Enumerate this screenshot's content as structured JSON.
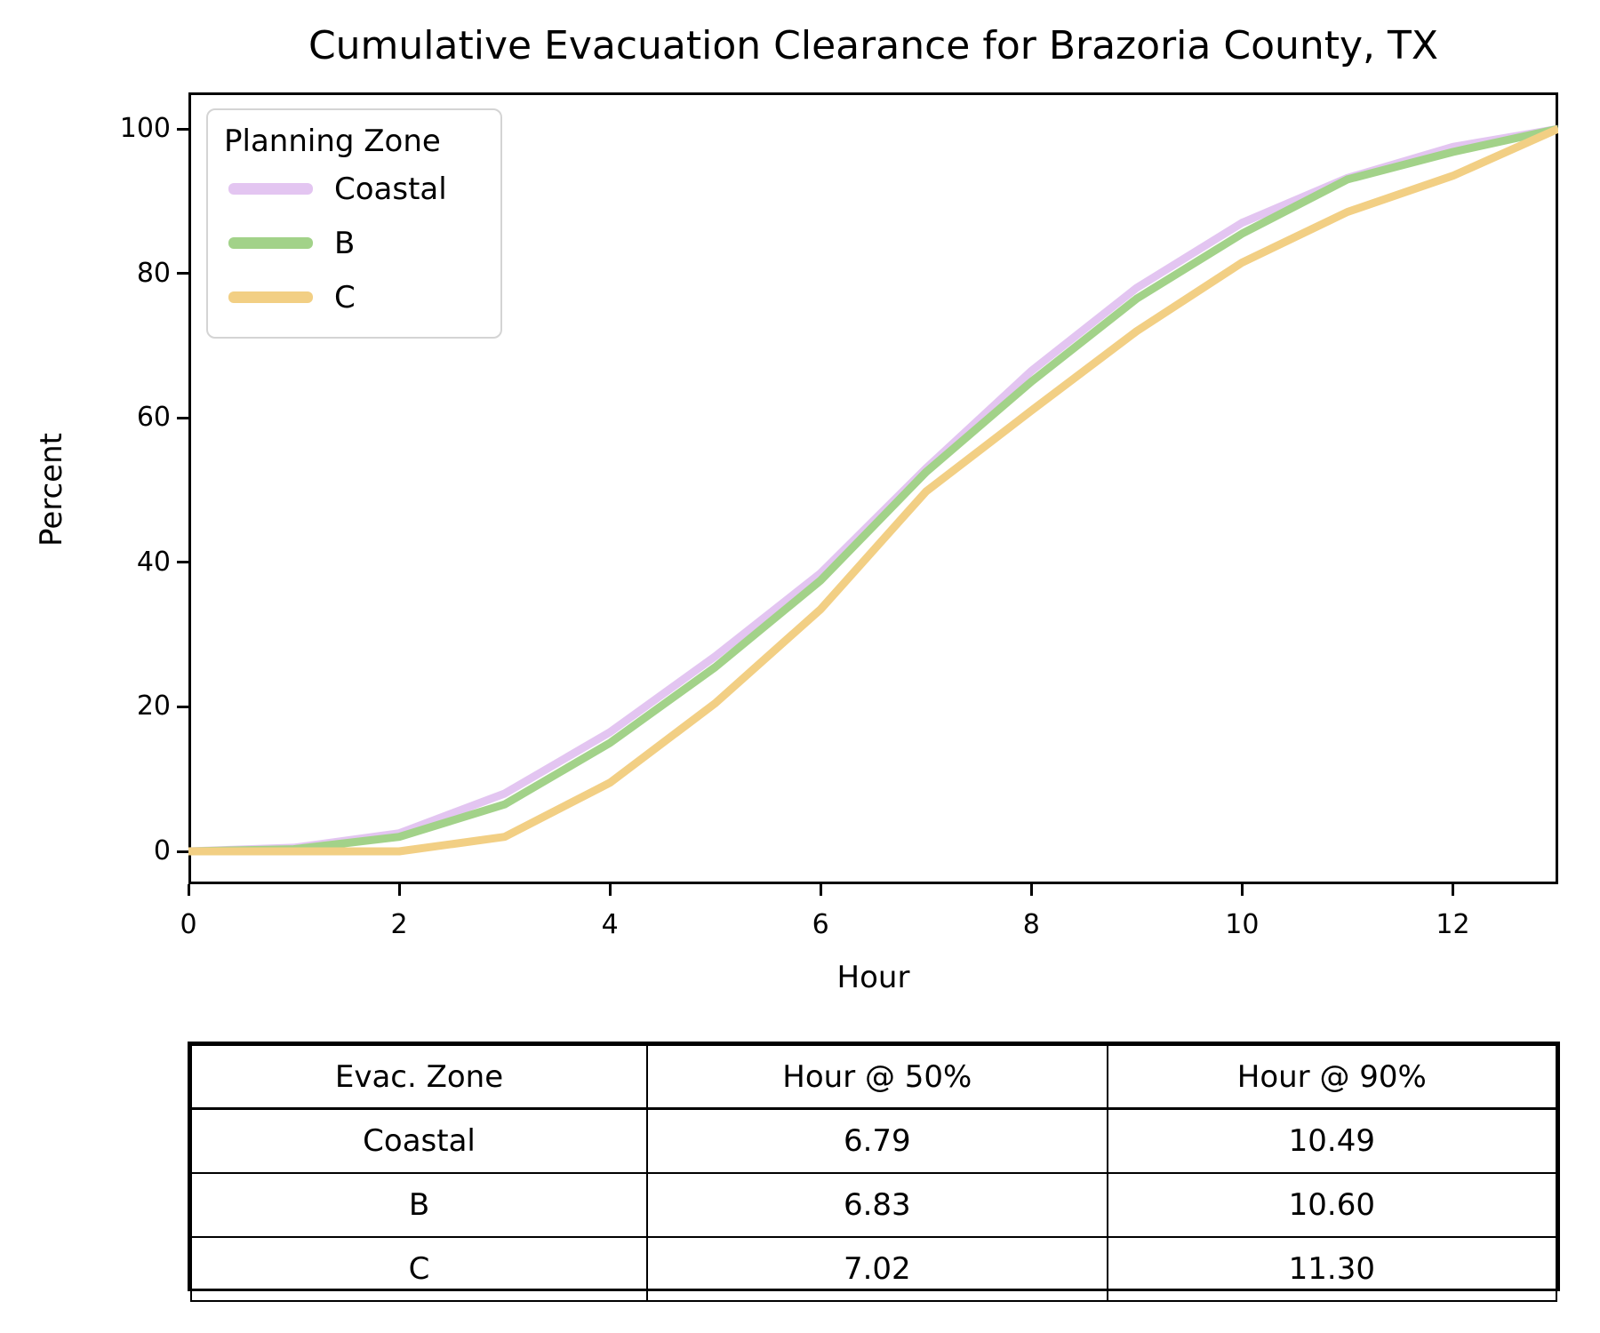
{
  "title": "Cumulative Evacuation Clearance for Brazoria County, TX",
  "chart_data": {
    "type": "line",
    "title": "Cumulative Evacuation Clearance for Brazoria County, TX",
    "xlabel": "Hour",
    "ylabel": "Percent",
    "xlim": [
      0,
      13
    ],
    "ylim": [
      -4.5,
      105
    ],
    "xticks": [
      0,
      2,
      4,
      6,
      8,
      10,
      12
    ],
    "yticks": [
      0,
      20,
      40,
      60,
      80,
      100
    ],
    "grid": false,
    "legend_title": "Planning Zone",
    "legend_position": "upper left",
    "x": [
      0,
      1,
      2,
      3,
      4,
      5,
      6,
      7,
      8,
      9,
      10,
      11,
      12,
      13
    ],
    "series": [
      {
        "name": "Coastal",
        "color": "#e3c5f1",
        "values": [
          0,
          0.5,
          2.5,
          8,
          16.5,
          27,
          38.5,
          53,
          66.5,
          78,
          87,
          93.2,
          97.5,
          100
        ]
      },
      {
        "name": "B",
        "color": "#a2d289",
        "values": [
          0,
          0.3,
          2,
          6.5,
          15,
          25.5,
          37.5,
          52.5,
          65,
          76.5,
          85.5,
          93,
          96.8,
          100
        ]
      },
      {
        "name": "C",
        "color": "#f2cf84",
        "values": [
          0,
          0,
          0,
          2,
          9.5,
          20.5,
          33.5,
          49.8,
          61,
          72,
          81.5,
          88.5,
          93.5,
          100
        ]
      }
    ]
  },
  "table": {
    "headers": [
      "Evac. Zone",
      "Hour @ 50%",
      "Hour @ 90%"
    ],
    "rows": [
      [
        "Coastal",
        "6.79",
        "10.49"
      ],
      [
        "B",
        "6.83",
        "10.60"
      ],
      [
        "C",
        "7.02",
        "11.30"
      ]
    ]
  },
  "colors": {
    "axis": "#000000",
    "legend_border": "#d4d4d4",
    "background": "#ffffff"
  }
}
